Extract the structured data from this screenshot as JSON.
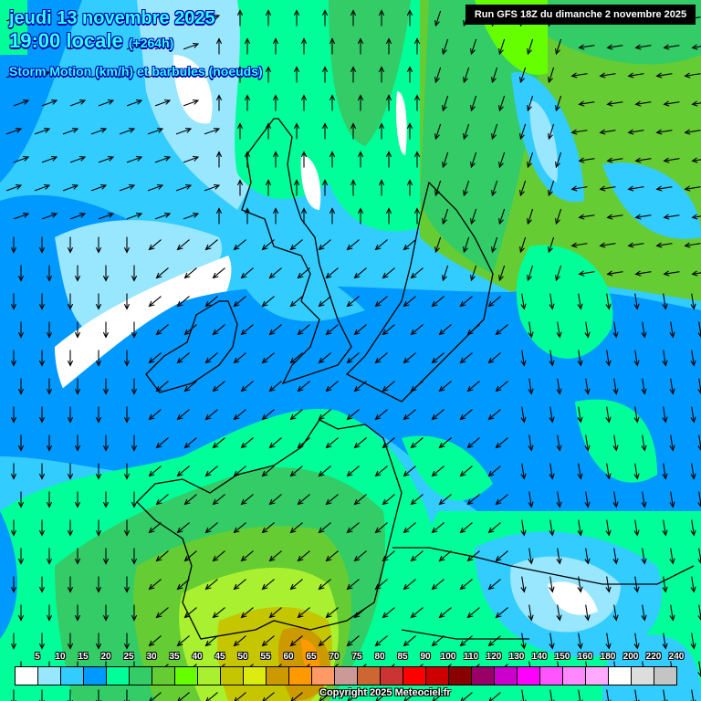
{
  "header": {
    "date": "jeudi 13 novembre 2025",
    "time": "19:00 locale",
    "lead": "(+264h)",
    "parameter": "Storm Motion (km/h) et barbules (noeuds)",
    "run": "Run GFS 18Z du dimanche 2 novembre 2025"
  },
  "legend": {
    "labels": [
      "5",
      "10",
      "15",
      "20",
      "25",
      "30",
      "35",
      "40",
      "45",
      "50",
      "55",
      "60",
      "65",
      "70",
      "75",
      "80",
      "85",
      "90",
      "100",
      "110",
      "120",
      "130",
      "140",
      "150",
      "160",
      "180",
      "200",
      "220",
      "240"
    ],
    "colors": [
      "#ffffff",
      "#99e6ff",
      "#33ccff",
      "#0099ff",
      "#00ff99",
      "#33cc66",
      "#66cc33",
      "#66ff00",
      "#a8f030",
      "#c6c600",
      "#dcec10",
      "#cc9900",
      "#ff9900",
      "#ff9966",
      "#cc9999",
      "#cc6633",
      "#cc3333",
      "#ff0000",
      "#cc0000",
      "#880000",
      "#990066",
      "#cc00cc",
      "#ff00ff",
      "#ff55ff",
      "#ff88ff",
      "#ffaaff",
      "#ffffff",
      "#dddddd",
      "#c4c4c4"
    ]
  },
  "footer": {
    "copyright": "Copyright 2025 Meteociel.fr"
  }
}
